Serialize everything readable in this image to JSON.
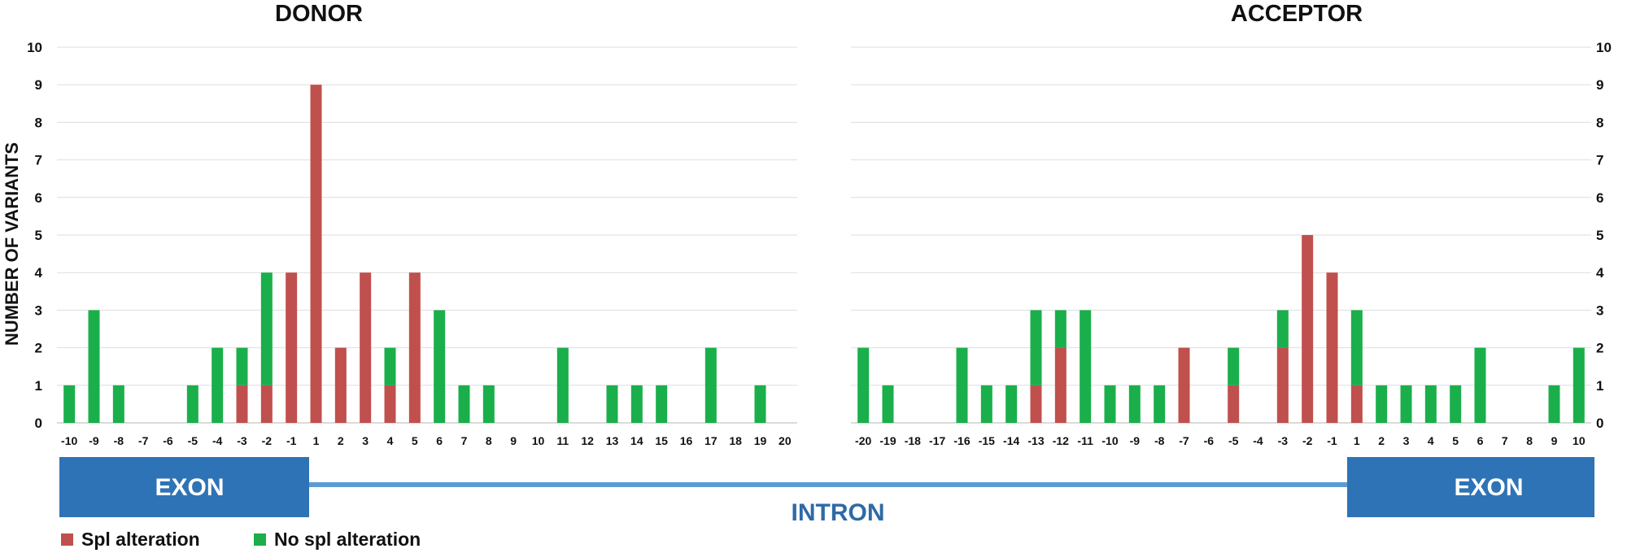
{
  "colors": {
    "spl_alteration": "#c0504d",
    "no_spl_alteration": "#1aaf4b",
    "exon": "#2e73b5",
    "intron_line": "#5b9bd5",
    "intron_text": "#2e6aa6"
  },
  "chart_data": [
    {
      "type": "bar",
      "stacked": true,
      "title": "DONOR",
      "ylabel": "NUMBER OF VARIANTS",
      "ylim": [
        0,
        10
      ],
      "yticks": [
        "0",
        "1",
        "2",
        "3",
        "4",
        "5",
        "6",
        "7",
        "8",
        "9",
        "10"
      ],
      "y_axis_side": "left",
      "grid": true,
      "categories": [
        "-10",
        "-9",
        "-8",
        "-7",
        "-6",
        "-5",
        "-4",
        "-3",
        "-2",
        "-1",
        "1",
        "2",
        "3",
        "4",
        "5",
        "6",
        "7",
        "8",
        "9",
        "10",
        "11",
        "12",
        "13",
        "14",
        "15",
        "16",
        "17",
        "18",
        "19",
        "20"
      ],
      "series": [
        {
          "name": "Spl alteration",
          "color_key": "spl_alteration",
          "values": [
            0,
            0,
            0,
            0,
            0,
            0,
            0,
            1,
            1,
            4,
            9,
            2,
            4,
            1,
            4,
            0,
            0,
            0,
            0,
            0,
            0,
            0,
            0,
            0,
            0,
            0,
            0,
            0,
            0,
            0
          ]
        },
        {
          "name": "No spl alteration",
          "color_key": "no_spl_alteration",
          "values": [
            1,
            3,
            1,
            0,
            0,
            1,
            2,
            1,
            3,
            0,
            0,
            0,
            0,
            1,
            0,
            3,
            1,
            1,
            0,
            0,
            2,
            0,
            1,
            1,
            1,
            0,
            2,
            0,
            1,
            0
          ]
        }
      ]
    },
    {
      "type": "bar",
      "stacked": true,
      "title": "ACCEPTOR",
      "ylabel": "",
      "ylim": [
        0,
        10
      ],
      "yticks": [
        "0",
        "1",
        "2",
        "3",
        "4",
        "5",
        "6",
        "7",
        "8",
        "9",
        "10"
      ],
      "y_axis_side": "right",
      "grid": true,
      "categories": [
        "-20",
        "-19",
        "-18",
        "-17",
        "-16",
        "-15",
        "-14",
        "-13",
        "-12",
        "-11",
        "-10",
        "-9",
        "-8",
        "-7",
        "-6",
        "-5",
        "-4",
        "-3",
        "-2",
        "-1",
        "1",
        "2",
        "3",
        "4",
        "5",
        "6",
        "7",
        "8",
        "9",
        "10"
      ],
      "series": [
        {
          "name": "Spl alteration",
          "color_key": "spl_alteration",
          "values": [
            0,
            0,
            0,
            0,
            0,
            0,
            0,
            1,
            2,
            0,
            0,
            0,
            0,
            2,
            0,
            1,
            0,
            2,
            5,
            4,
            1,
            0,
            0,
            0,
            0,
            0,
            0,
            0,
            0,
            0
          ]
        },
        {
          "name": "No spl alteration",
          "color_key": "no_spl_alteration",
          "values": [
            2,
            1,
            0,
            0,
            2,
            1,
            1,
            2,
            1,
            3,
            1,
            1,
            1,
            0,
            0,
            1,
            0,
            1,
            0,
            0,
            2,
            1,
            1,
            1,
            1,
            2,
            0,
            0,
            1,
            2
          ]
        }
      ]
    }
  ],
  "diagram": {
    "exon_left_label": "EXON",
    "exon_right_label": "EXON",
    "intron_label": "INTRON"
  },
  "legend": {
    "items": [
      {
        "label": "Spl alteration",
        "color_key": "spl_alteration"
      },
      {
        "label": "No spl alteration",
        "color_key": "no_spl_alteration"
      }
    ]
  }
}
